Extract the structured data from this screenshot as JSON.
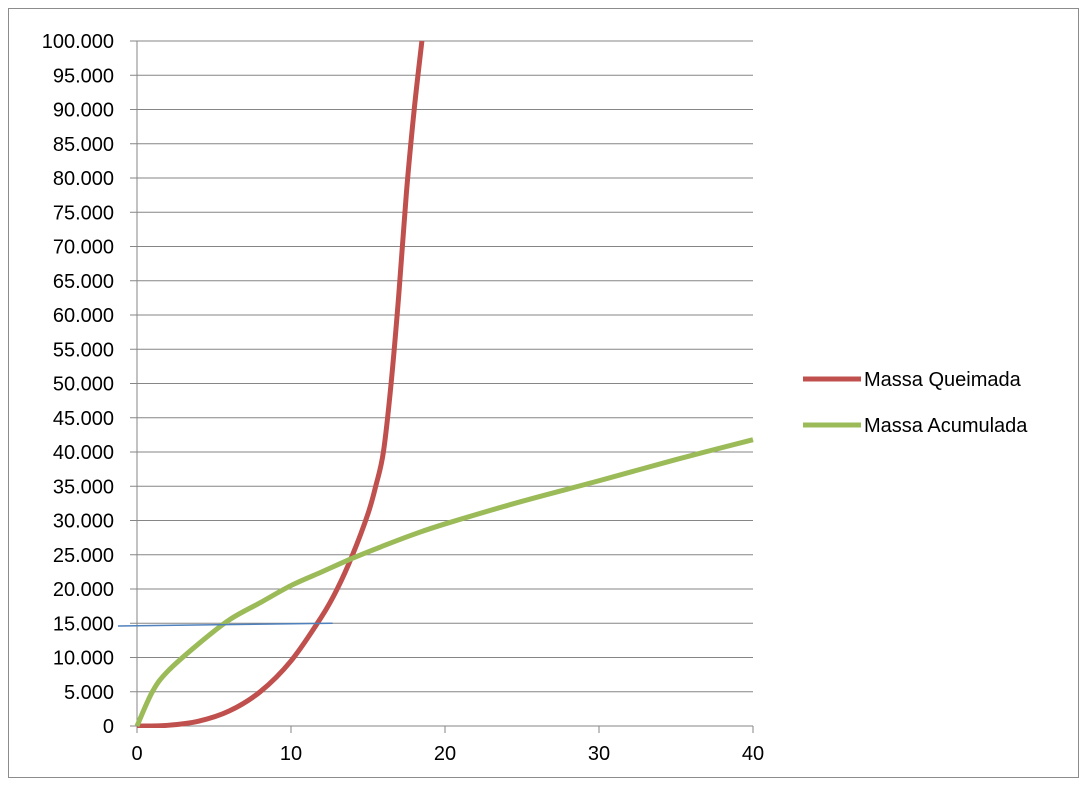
{
  "chart_data": {
    "type": "line",
    "title": "",
    "xlabel": "",
    "ylabel": "",
    "xlim": [
      0,
      40
    ],
    "ylim": [
      0,
      100000
    ],
    "x_ticks": [
      "0",
      "10",
      "20",
      "30",
      "40"
    ],
    "y_ticks": [
      "0",
      "5.000",
      "10.000",
      "15.000",
      "20.000",
      "25.000",
      "30.000",
      "35.000",
      "40.000",
      "45.000",
      "50.000",
      "55.000",
      "60.000",
      "65.000",
      "70.000",
      "75.000",
      "80.000",
      "85.000",
      "90.000",
      "95.000",
      "100.000"
    ],
    "x_tick_values": [
      0,
      10,
      20,
      30,
      40
    ],
    "y_tick_values": [
      0,
      5000,
      10000,
      15000,
      20000,
      25000,
      30000,
      35000,
      40000,
      45000,
      50000,
      55000,
      60000,
      65000,
      70000,
      75000,
      80000,
      85000,
      90000,
      95000,
      100000
    ],
    "grid": "horizontal",
    "legend_position": "right",
    "series": [
      {
        "name": "Massa Queimada",
        "color": "#c0504d",
        "x": [
          0,
          2,
          4,
          6,
          8,
          10,
          12,
          13,
          14,
          15,
          15.5,
          16,
          16.5,
          17,
          17.5,
          18,
          18.5
        ],
        "y": [
          0,
          100,
          700,
          2200,
          5000,
          9500,
          16000,
          20000,
          25000,
          31000,
          35000,
          40000,
          50000,
          63000,
          78000,
          90000,
          100000
        ]
      },
      {
        "name": "Massa Acumulada",
        "color": "#9bbb59",
        "x": [
          0,
          1,
          2,
          4,
          6,
          8,
          10,
          12,
          14,
          16,
          18,
          20,
          25,
          30,
          35,
          40
        ],
        "y": [
          0,
          5000,
          8000,
          12000,
          15500,
          18000,
          20500,
          22500,
          24500,
          26300,
          28000,
          29500,
          32800,
          35800,
          38900,
          41800
        ]
      }
    ],
    "reference_line": {
      "color": "#4f81bd",
      "x": [
        0,
        12.7
      ],
      "y": [
        14600,
        15000
      ]
    }
  }
}
